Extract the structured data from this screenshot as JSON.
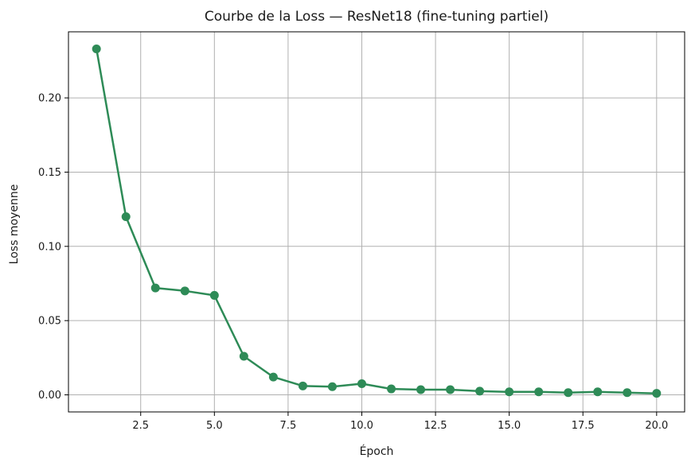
{
  "chart_data": {
    "type": "line",
    "title": "Courbe de la Loss — ResNet18 (fine-tuning partiel)",
    "xlabel": "Époch",
    "ylabel": "Loss moyenne",
    "xlim": [
      0.05,
      20.95
    ],
    "ylim": [
      -0.0115,
      0.2445
    ],
    "xticks": [
      2.5,
      5.0,
      7.5,
      10.0,
      12.5,
      15.0,
      17.5,
      20.0
    ],
    "xtick_labels": [
      "2.5",
      "5.0",
      "7.5",
      "10.0",
      "12.5",
      "15.0",
      "17.5",
      "20.0"
    ],
    "yticks": [
      0.0,
      0.05,
      0.1,
      0.15,
      0.2
    ],
    "ytick_labels": [
      "0.00",
      "0.05",
      "0.10",
      "0.15",
      "0.20"
    ],
    "grid": true,
    "color": "#2e8b57",
    "series": [
      {
        "x": [
          1,
          2,
          3,
          4,
          5,
          6,
          7,
          8,
          9,
          10,
          11,
          12,
          13,
          14,
          15,
          16,
          17,
          18,
          19,
          20
        ],
        "values": [
          0.233,
          0.12,
          0.072,
          0.07,
          0.067,
          0.026,
          0.012,
          0.006,
          0.0055,
          0.0075,
          0.004,
          0.0035,
          0.0035,
          0.0025,
          0.002,
          0.002,
          0.0015,
          0.002,
          0.0015,
          0.001
        ]
      }
    ]
  }
}
